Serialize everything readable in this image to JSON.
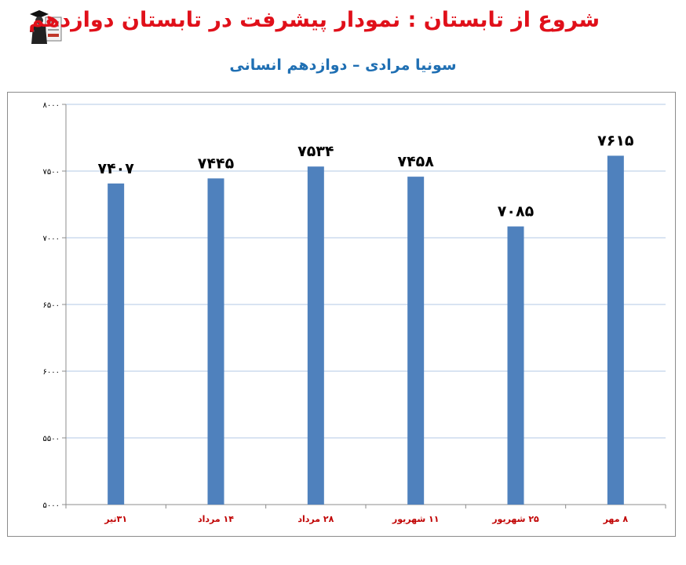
{
  "header": {
    "title": "شروع از تابستان : نمودار پیشرفت در تابستان دوازدهم",
    "subtitle": "سونیا مرادی – دوازدهم انسانی",
    "title_color": "#e0101a",
    "subtitle_color": "#1f6fb3",
    "logo_icon": "graduate-logo-icon"
  },
  "chart_data": {
    "type": "bar",
    "title": "",
    "xlabel": "",
    "ylabel": "",
    "categories": [
      "۳۱تیر",
      "۱۴ مرداد",
      "۲۸ مرداد",
      "۱۱ شهریور",
      "۲۵ شهریور",
      "۸ مهر"
    ],
    "values": [
      7407,
      7445,
      7534,
      7458,
      7085,
      7615
    ],
    "value_labels": [
      "۷۴۰۷",
      "۷۴۴۵",
      "۷۵۳۴",
      "۷۴۵۸",
      "۷۰۸۵",
      "۷۶۱۵"
    ],
    "ylim": [
      5000,
      8000
    ],
    "yticks": [
      5000,
      5500,
      6000,
      6500,
      7000,
      7500,
      8000
    ],
    "ytick_labels": [
      "۵۰۰۰",
      "۵۵۰۰",
      "۶۰۰۰",
      "۶۵۰۰",
      "۷۰۰۰",
      "۷۵۰۰",
      "۸۰۰۰"
    ],
    "grid": true,
    "legend": "none",
    "bar_color": "#4f81bd",
    "grid_color": "#b3c8e6",
    "tick_label_color": "#c00000"
  }
}
